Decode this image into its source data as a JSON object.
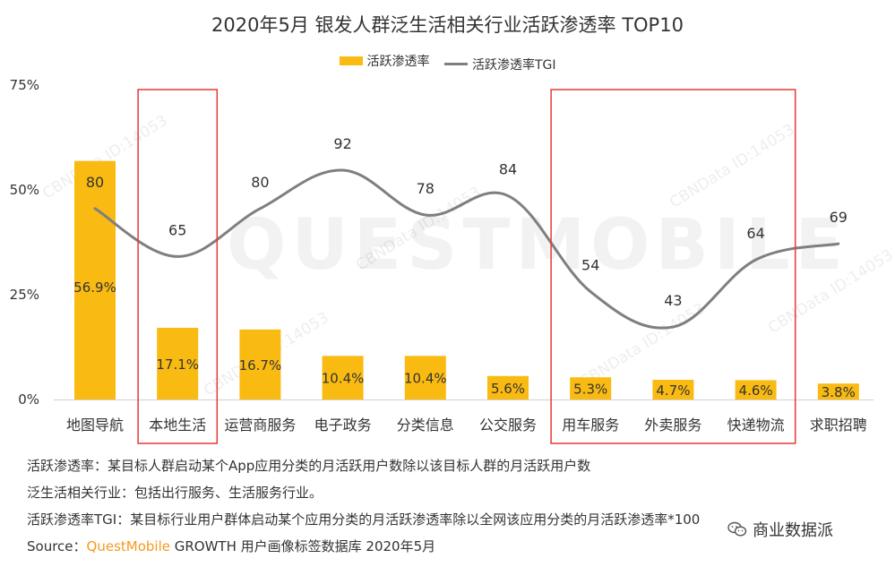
{
  "chart_data": {
    "type": "bar",
    "title": "2020年5月 银发人群泛生活相关行业活跃渗透率 TOP10",
    "categories": [
      "地图导航",
      "本地生活",
      "运营商服务",
      "电子政务",
      "分类信息",
      "公交服务",
      "用车服务",
      "外卖服务",
      "快递物流",
      "求职招聘"
    ],
    "series": [
      {
        "name": "活跃渗透率",
        "kind": "bar",
        "values": [
          56.9,
          17.1,
          16.7,
          10.4,
          10.4,
          5.6,
          5.3,
          4.7,
          4.6,
          3.8
        ],
        "labels": [
          "56.9%",
          "17.1%",
          "16.7%",
          "10.4%",
          "10.4%",
          "5.6%",
          "5.3%",
          "4.7%",
          "4.6%",
          "3.8%"
        ]
      },
      {
        "name": "活跃渗透率TGI",
        "kind": "line",
        "values": [
          80,
          65,
          80,
          92,
          78,
          84,
          54,
          43,
          64,
          69
        ],
        "labels": [
          "80",
          "65",
          "80",
          "92",
          "78",
          "84",
          "54",
          "43",
          "64",
          "69"
        ]
      }
    ],
    "ylim": [
      0,
      75
    ],
    "yticks": [
      0,
      25,
      50,
      75
    ],
    "ytick_labels": [
      "0%",
      "25%",
      "50%",
      "75%"
    ],
    "highlighted_categories": [
      "本地生活",
      "用车服务",
      "外卖服务",
      "快递物流"
    ],
    "watermarks": [
      "QUESTMOBILE",
      "CBNData ID:14053"
    ],
    "colors": {
      "bar": "#F9BA12",
      "line": "#7f7f7f",
      "highlight_box": "#E53935"
    }
  },
  "notes": [
    "活跃渗透率：某目标人群启动某个App应用分类的月活跃用户数除以该目标人群的月活跃用户数",
    "泛生活相关行业：包括出行服务、生活服务行业。",
    "活跃渗透率TGI：某目标行业用户群体启动某个应用分类的月活跃渗透率除以全网该应用分类的月活跃渗透率*100"
  ],
  "source": {
    "label": "Source：",
    "brand": "QuestMobile",
    "text": " GROWTH 用户画像标签数据库 2020年5月"
  },
  "badge": {
    "text": "商业数据派"
  }
}
